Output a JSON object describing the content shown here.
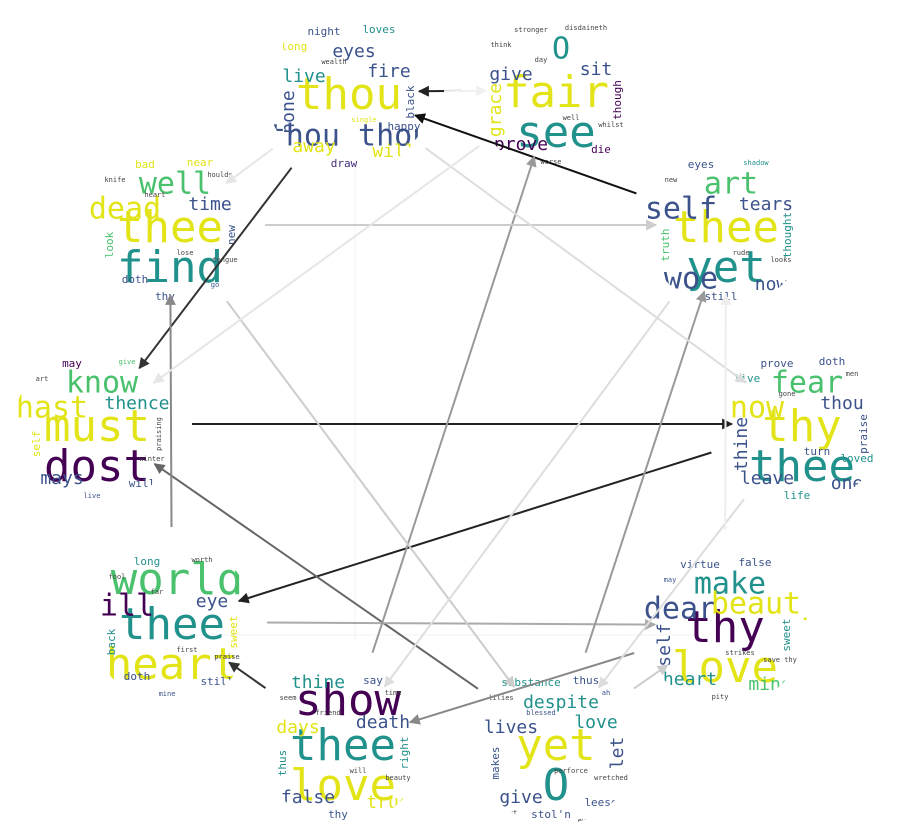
{
  "palette": {
    "yellow": "#e2e418",
    "yellowgreen": "#bddf26",
    "green": "#4ac16d",
    "teal": "#21918c",
    "blue": "#2c728e",
    "indigo": "#3b528b",
    "purple": "#472d7b",
    "darkpurple": "#440154",
    "lime": "#7ad151",
    "gray": "#444444"
  },
  "clouds": [
    {
      "id": "cloud-top-center",
      "words": [
        {
          "text": "thou",
          "w": "big",
          "c": "yellow"
        },
        {
          "text": "thou thou",
          "w": "mid",
          "c": "indigo"
        },
        {
          "text": "eyes",
          "w": "med",
          "c": "indigo"
        },
        {
          "text": "live",
          "w": "med",
          "c": "teal"
        },
        {
          "text": "fire",
          "w": "med",
          "c": "indigo"
        },
        {
          "text": "away",
          "w": "med",
          "c": "yellow"
        },
        {
          "text": "will",
          "w": "med",
          "c": "yellow"
        },
        {
          "text": "none",
          "w": "med",
          "c": "indigo"
        },
        {
          "text": "black",
          "w": "small",
          "c": "indigo"
        },
        {
          "text": "night",
          "w": "small",
          "c": "indigo"
        },
        {
          "text": "loves",
          "w": "small",
          "c": "teal"
        },
        {
          "text": "draw",
          "w": "small",
          "c": "purple"
        },
        {
          "text": "happy",
          "w": "small",
          "c": "indigo"
        },
        {
          "text": "long",
          "w": "small",
          "c": "yellow"
        },
        {
          "text": "single",
          "w": "tiny",
          "c": "yellow"
        },
        {
          "text": "wealth",
          "w": "tiny",
          "c": "gray"
        }
      ]
    },
    {
      "id": "cloud-top-right",
      "words": [
        {
          "text": "fair",
          "w": "big",
          "c": "yellow"
        },
        {
          "text": "see",
          "w": "big",
          "c": "teal"
        },
        {
          "text": "O",
          "w": "mid",
          "c": "teal"
        },
        {
          "text": "give",
          "w": "med",
          "c": "indigo"
        },
        {
          "text": "sit",
          "w": "med",
          "c": "indigo"
        },
        {
          "text": "prove",
          "w": "med",
          "c": "darkpurple"
        },
        {
          "text": "die",
          "w": "small",
          "c": "darkpurple"
        },
        {
          "text": "grace",
          "w": "med",
          "c": "yellow"
        },
        {
          "text": "though",
          "w": "small",
          "c": "darkpurple"
        },
        {
          "text": "stronger",
          "w": "tiny",
          "c": "gray"
        },
        {
          "text": "disdaineth",
          "w": "tiny",
          "c": "gray"
        },
        {
          "text": "worse",
          "w": "tiny",
          "c": "gray"
        },
        {
          "text": "whilst",
          "w": "tiny",
          "c": "gray"
        },
        {
          "text": "think",
          "w": "tiny",
          "c": "gray"
        },
        {
          "text": "well",
          "w": "tiny",
          "c": "gray"
        },
        {
          "text": "day",
          "w": "tiny",
          "c": "gray"
        }
      ]
    },
    {
      "id": "cloud-right-upper",
      "words": [
        {
          "text": "thee",
          "w": "big",
          "c": "yellow"
        },
        {
          "text": "yet",
          "w": "big",
          "c": "teal"
        },
        {
          "text": "art",
          "w": "mid",
          "c": "green"
        },
        {
          "text": "self",
          "w": "mid",
          "c": "indigo"
        },
        {
          "text": "tears",
          "w": "med",
          "c": "indigo"
        },
        {
          "text": "woe",
          "w": "mid",
          "c": "indigo"
        },
        {
          "text": "now",
          "w": "med",
          "c": "indigo"
        },
        {
          "text": "truth",
          "w": "small",
          "c": "green"
        },
        {
          "text": "thought",
          "w": "small",
          "c": "teal"
        },
        {
          "text": "eyes",
          "w": "small",
          "c": "indigo"
        },
        {
          "text": "shadow",
          "w": "tiny",
          "c": "teal"
        },
        {
          "text": "still",
          "w": "small",
          "c": "indigo"
        },
        {
          "text": "looks",
          "w": "tiny",
          "c": "gray"
        },
        {
          "text": "new",
          "w": "tiny",
          "c": "gray"
        },
        {
          "text": "rude",
          "w": "tiny",
          "c": "gray"
        }
      ]
    },
    {
      "id": "cloud-right",
      "words": [
        {
          "text": "thy",
          "w": "big",
          "c": "yellow"
        },
        {
          "text": "thee",
          "w": "big",
          "c": "teal"
        },
        {
          "text": "fear",
          "w": "mid",
          "c": "green"
        },
        {
          "text": "now",
          "w": "mid",
          "c": "yellow"
        },
        {
          "text": "thou",
          "w": "med",
          "c": "indigo"
        },
        {
          "text": "leave",
          "w": "med",
          "c": "indigo"
        },
        {
          "text": "one",
          "w": "med",
          "c": "indigo"
        },
        {
          "text": "thine",
          "w": "med",
          "c": "indigo"
        },
        {
          "text": "praise",
          "w": "small",
          "c": "indigo"
        },
        {
          "text": "prove",
          "w": "small",
          "c": "indigo"
        },
        {
          "text": "doth",
          "w": "small",
          "c": "indigo"
        },
        {
          "text": "life",
          "w": "small",
          "c": "teal"
        },
        {
          "text": "loved",
          "w": "small",
          "c": "teal"
        },
        {
          "text": "live",
          "w": "small",
          "c": "teal"
        },
        {
          "text": "turn",
          "w": "small",
          "c": "indigo"
        },
        {
          "text": "gone",
          "w": "tiny",
          "c": "gray"
        },
        {
          "text": "men",
          "w": "tiny",
          "c": "gray"
        }
      ]
    },
    {
      "id": "cloud-bottom-right",
      "words": [
        {
          "text": "thy",
          "w": "big",
          "c": "darkpurple"
        },
        {
          "text": "love",
          "w": "big",
          "c": "yellow"
        },
        {
          "text": "make",
          "w": "mid",
          "c": "teal"
        },
        {
          "text": "dear",
          "w": "mid",
          "c": "indigo"
        },
        {
          "text": "beauty",
          "w": "mid",
          "c": "yellow"
        },
        {
          "text": "heart",
          "w": "med",
          "c": "teal"
        },
        {
          "text": "mine",
          "w": "med",
          "c": "green"
        },
        {
          "text": "self",
          "w": "med",
          "c": "indigo"
        },
        {
          "text": "sweet",
          "w": "small",
          "c": "teal"
        },
        {
          "text": "virtue",
          "w": "small",
          "c": "indigo"
        },
        {
          "text": "false",
          "w": "small",
          "c": "indigo"
        },
        {
          "text": "pity",
          "w": "tiny",
          "c": "gray"
        },
        {
          "text": "save thy",
          "w": "tiny",
          "c": "gray"
        },
        {
          "text": "may",
          "w": "tiny",
          "c": "indigo"
        },
        {
          "text": "strikes",
          "w": "tiny",
          "c": "gray"
        }
      ]
    },
    {
      "id": "cloud-bottom-center",
      "words": [
        {
          "text": "yet",
          "w": "big",
          "c": "yellow"
        },
        {
          "text": "O",
          "w": "big",
          "c": "teal"
        },
        {
          "text": "despite",
          "w": "med",
          "c": "teal"
        },
        {
          "text": "lives",
          "w": "med",
          "c": "indigo"
        },
        {
          "text": "love",
          "w": "med",
          "c": "teal"
        },
        {
          "text": "give",
          "w": "med",
          "c": "indigo"
        },
        {
          "text": "leese",
          "w": "small",
          "c": "indigo"
        },
        {
          "text": "makes",
          "w": "small",
          "c": "indigo"
        },
        {
          "text": "let",
          "w": "med",
          "c": "indigo"
        },
        {
          "text": "substance",
          "w": "small",
          "c": "teal"
        },
        {
          "text": "thus",
          "w": "small",
          "c": "indigo"
        },
        {
          "text": "stol'n",
          "w": "small",
          "c": "indigo"
        },
        {
          "text": "wretched",
          "w": "tiny",
          "c": "gray"
        },
        {
          "text": "lilies",
          "w": "tiny",
          "c": "gray"
        },
        {
          "text": "perforce",
          "w": "tiny",
          "c": "gray"
        },
        {
          "text": "blessed",
          "w": "tiny",
          "c": "indigo"
        },
        {
          "text": "ah",
          "w": "tiny",
          "c": "indigo"
        },
        {
          "text": "put",
          "w": "tiny",
          "c": "gray"
        },
        {
          "text": "eyes",
          "w": "tiny",
          "c": "gray"
        }
      ]
    },
    {
      "id": "cloud-bottom-left2",
      "words": [
        {
          "text": "thee",
          "w": "big",
          "c": "teal"
        },
        {
          "text": "love",
          "w": "big",
          "c": "yellow"
        },
        {
          "text": "show",
          "w": "big",
          "c": "darkpurple"
        },
        {
          "text": "days",
          "w": "med",
          "c": "yellow"
        },
        {
          "text": "death",
          "w": "med",
          "c": "indigo"
        },
        {
          "text": "false",
          "w": "med",
          "c": "indigo"
        },
        {
          "text": "true",
          "w": "med",
          "c": "yellow"
        },
        {
          "text": "thus",
          "w": "small",
          "c": "teal"
        },
        {
          "text": "right",
          "w": "small",
          "c": "teal"
        },
        {
          "text": "thine",
          "w": "med",
          "c": "teal"
        },
        {
          "text": "say",
          "w": "small",
          "c": "indigo"
        },
        {
          "text": "thy",
          "w": "small",
          "c": "indigo"
        },
        {
          "text": "beauty",
          "w": "tiny",
          "c": "gray"
        },
        {
          "text": "seem",
          "w": "tiny",
          "c": "gray"
        },
        {
          "text": "will",
          "w": "tiny",
          "c": "gray"
        },
        {
          "text": "friend",
          "w": "tiny",
          "c": "gray"
        },
        {
          "text": "time",
          "w": "tiny",
          "c": "gray"
        }
      ]
    },
    {
      "id": "cloud-left-lower",
      "words": [
        {
          "text": "thee",
          "w": "big",
          "c": "teal"
        },
        {
          "text": "heart",
          "w": "big",
          "c": "yellow"
        },
        {
          "text": "world",
          "w": "big",
          "c": "green"
        },
        {
          "text": "ill",
          "w": "mid",
          "c": "darkpurple"
        },
        {
          "text": "eye",
          "w": "med",
          "c": "indigo"
        },
        {
          "text": "doth",
          "w": "small",
          "c": "indigo"
        },
        {
          "text": "still",
          "w": "small",
          "c": "indigo"
        },
        {
          "text": "back",
          "w": "small",
          "c": "teal"
        },
        {
          "text": "sweet",
          "w": "small",
          "c": "yellow"
        },
        {
          "text": "long",
          "w": "small",
          "c": "teal"
        },
        {
          "text": "worth",
          "w": "tiny",
          "c": "gray"
        },
        {
          "text": "mine",
          "w": "tiny",
          "c": "indigo"
        },
        {
          "text": "praise",
          "w": "tiny",
          "c": "gray"
        },
        {
          "text": "fool",
          "w": "tiny",
          "c": "gray"
        },
        {
          "text": "first",
          "w": "tiny",
          "c": "gray"
        },
        {
          "text": "far",
          "w": "tiny",
          "c": "gray"
        }
      ]
    },
    {
      "id": "cloud-left",
      "words": [
        {
          "text": "must",
          "w": "big",
          "c": "yellow"
        },
        {
          "text": "dost",
          "w": "big",
          "c": "darkpurple"
        },
        {
          "text": "know",
          "w": "mid",
          "c": "green"
        },
        {
          "text": "hast",
          "w": "mid",
          "c": "yellow"
        },
        {
          "text": "thence",
          "w": "med",
          "c": "teal"
        },
        {
          "text": "mays",
          "w": "med",
          "c": "indigo"
        },
        {
          "text": "will",
          "w": "small",
          "c": "indigo"
        },
        {
          "text": "self",
          "w": "small",
          "c": "yellow"
        },
        {
          "text": "praising",
          "w": "tiny",
          "c": "gray"
        },
        {
          "text": "may",
          "w": "small",
          "c": "darkpurple"
        },
        {
          "text": "give",
          "w": "tiny",
          "c": "green"
        },
        {
          "text": "live",
          "w": "tiny",
          "c": "indigo"
        },
        {
          "text": "winter",
          "w": "tiny",
          "c": "gray"
        },
        {
          "text": "art",
          "w": "tiny",
          "c": "gray"
        }
      ]
    },
    {
      "id": "cloud-top-left",
      "words": [
        {
          "text": "thee",
          "w": "big",
          "c": "yellow"
        },
        {
          "text": "find",
          "w": "big",
          "c": "teal"
        },
        {
          "text": "well",
          "w": "mid",
          "c": "green"
        },
        {
          "text": "dead",
          "w": "mid",
          "c": "yellow"
        },
        {
          "text": "time",
          "w": "med",
          "c": "indigo"
        },
        {
          "text": "doth",
          "w": "small",
          "c": "indigo"
        },
        {
          "text": "go",
          "w": "tiny",
          "c": "indigo"
        },
        {
          "text": "look",
          "w": "small",
          "c": "green"
        },
        {
          "text": "new",
          "w": "small",
          "c": "indigo"
        },
        {
          "text": "bad",
          "w": "small",
          "c": "yellow"
        },
        {
          "text": "near",
          "w": "small",
          "c": "yellow"
        },
        {
          "text": "thy",
          "w": "small",
          "c": "indigo"
        },
        {
          "text": "tongue",
          "w": "tiny",
          "c": "gray"
        },
        {
          "text": "knife",
          "w": "tiny",
          "c": "gray"
        },
        {
          "text": "lose",
          "w": "tiny",
          "c": "gray"
        },
        {
          "text": "heart",
          "w": "tiny",
          "c": "gray"
        },
        {
          "text": "houlds",
          "w": "tiny",
          "c": "gray"
        }
      ]
    }
  ],
  "edges": [
    {
      "from": 1,
      "to": 0,
      "shade": "#222222"
    },
    {
      "from": 2,
      "to": 0,
      "shade": "#111111"
    },
    {
      "from": 0,
      "to": 8,
      "shade": "#333333"
    },
    {
      "from": 8,
      "to": 3,
      "shade": "#222222"
    },
    {
      "from": 3,
      "to": 7,
      "shade": "#222222"
    },
    {
      "from": 5,
      "to": 8,
      "shade": "#666666"
    },
    {
      "from": 6,
      "to": 7,
      "shade": "#333333"
    },
    {
      "from": 4,
      "to": 6,
      "shade": "#888888"
    },
    {
      "from": 7,
      "to": 9,
      "shade": "#888888"
    },
    {
      "from": 7,
      "to": 4,
      "shade": "#aaaaaa"
    },
    {
      "from": 6,
      "to": 1,
      "shade": "#999999"
    },
    {
      "from": 5,
      "to": 2,
      "shade": "#999999"
    },
    {
      "from": 9,
      "to": 2,
      "shade": "#cccccc"
    },
    {
      "from": 0,
      "to": 3,
      "shade": "#dddddd"
    },
    {
      "from": 9,
      "to": 5,
      "shade": "#cccccc"
    },
    {
      "from": 1,
      "to": 8,
      "shade": "#e6e6e6"
    },
    {
      "from": 2,
      "to": 6,
      "shade": "#dddddd"
    },
    {
      "from": 3,
      "to": 5,
      "shade": "#dddddd"
    },
    {
      "from": 0,
      "to": 9,
      "shade": "#e6e6e6"
    },
    {
      "from": 5,
      "to": 4,
      "shade": "#cccccc"
    },
    {
      "from": 0,
      "to": 1,
      "shade": "#f0f0f0"
    },
    {
      "from": 4,
      "to": 2,
      "shade": "#eeeeee"
    }
  ]
}
